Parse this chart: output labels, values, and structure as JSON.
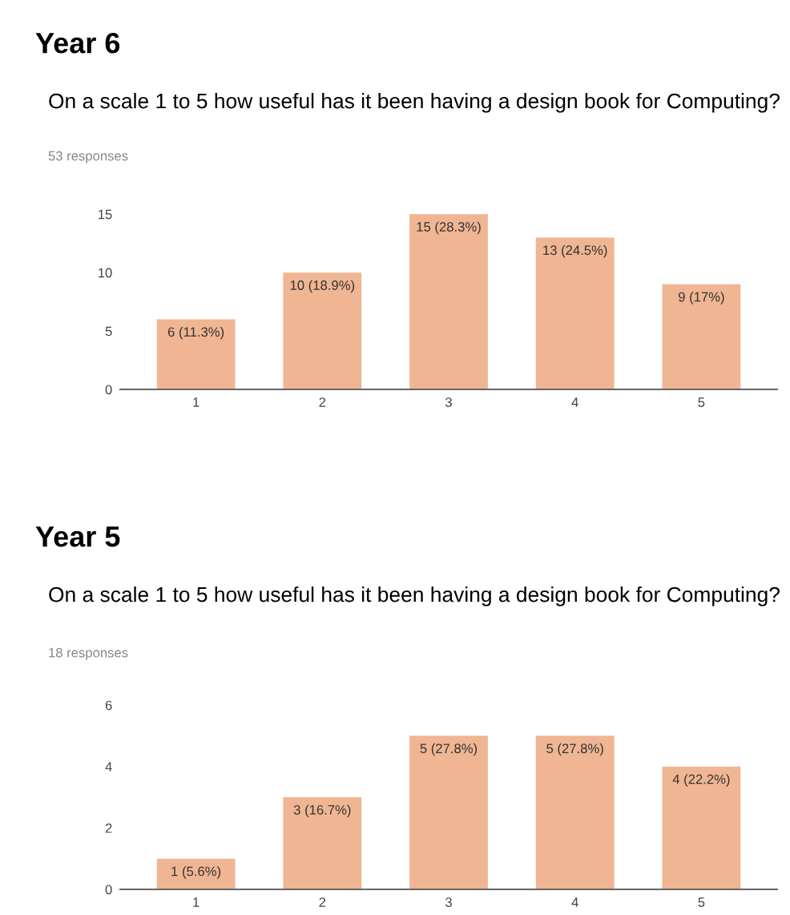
{
  "chart_data": [
    {
      "type": "bar",
      "title": "Year 6",
      "subtitle": "On a scale 1 to 5 how useful has it been having a design book for Computing?",
      "annotations": [
        "53 responses"
      ],
      "categories": [
        "1",
        "2",
        "3",
        "4",
        "5"
      ],
      "values": [
        6,
        10,
        15,
        13,
        9
      ],
      "color": "#f0b592",
      "value_labels": [
        "6 (11.3%)",
        "10 (18.9%)",
        "15 (28.3%)",
        "13 (24.5%)",
        "9 (17%)"
      ],
      "ylim": [
        0,
        15.5
      ],
      "yticks": [
        0,
        5,
        10,
        15
      ],
      "grid": false,
      "legend": false
    },
    {
      "type": "bar",
      "title": "Year 5",
      "subtitle": "On a scale 1 to 5 how useful has it been having a design book for Computing?",
      "annotations": [
        "18 responses"
      ],
      "categories": [
        "1",
        "2",
        "3",
        "4",
        "5"
      ],
      "values": [
        1,
        3,
        5,
        5,
        4
      ],
      "color": "#f0b592",
      "value_labels": [
        "1 (5.6%)",
        "3 (16.7%)",
        "5 (27.8%)",
        "5 (27.8%)",
        "4 (22.2%)"
      ],
      "ylim": [
        0,
        6
      ],
      "yticks": [
        0,
        2,
        4,
        6
      ],
      "grid": false,
      "legend": false
    }
  ]
}
